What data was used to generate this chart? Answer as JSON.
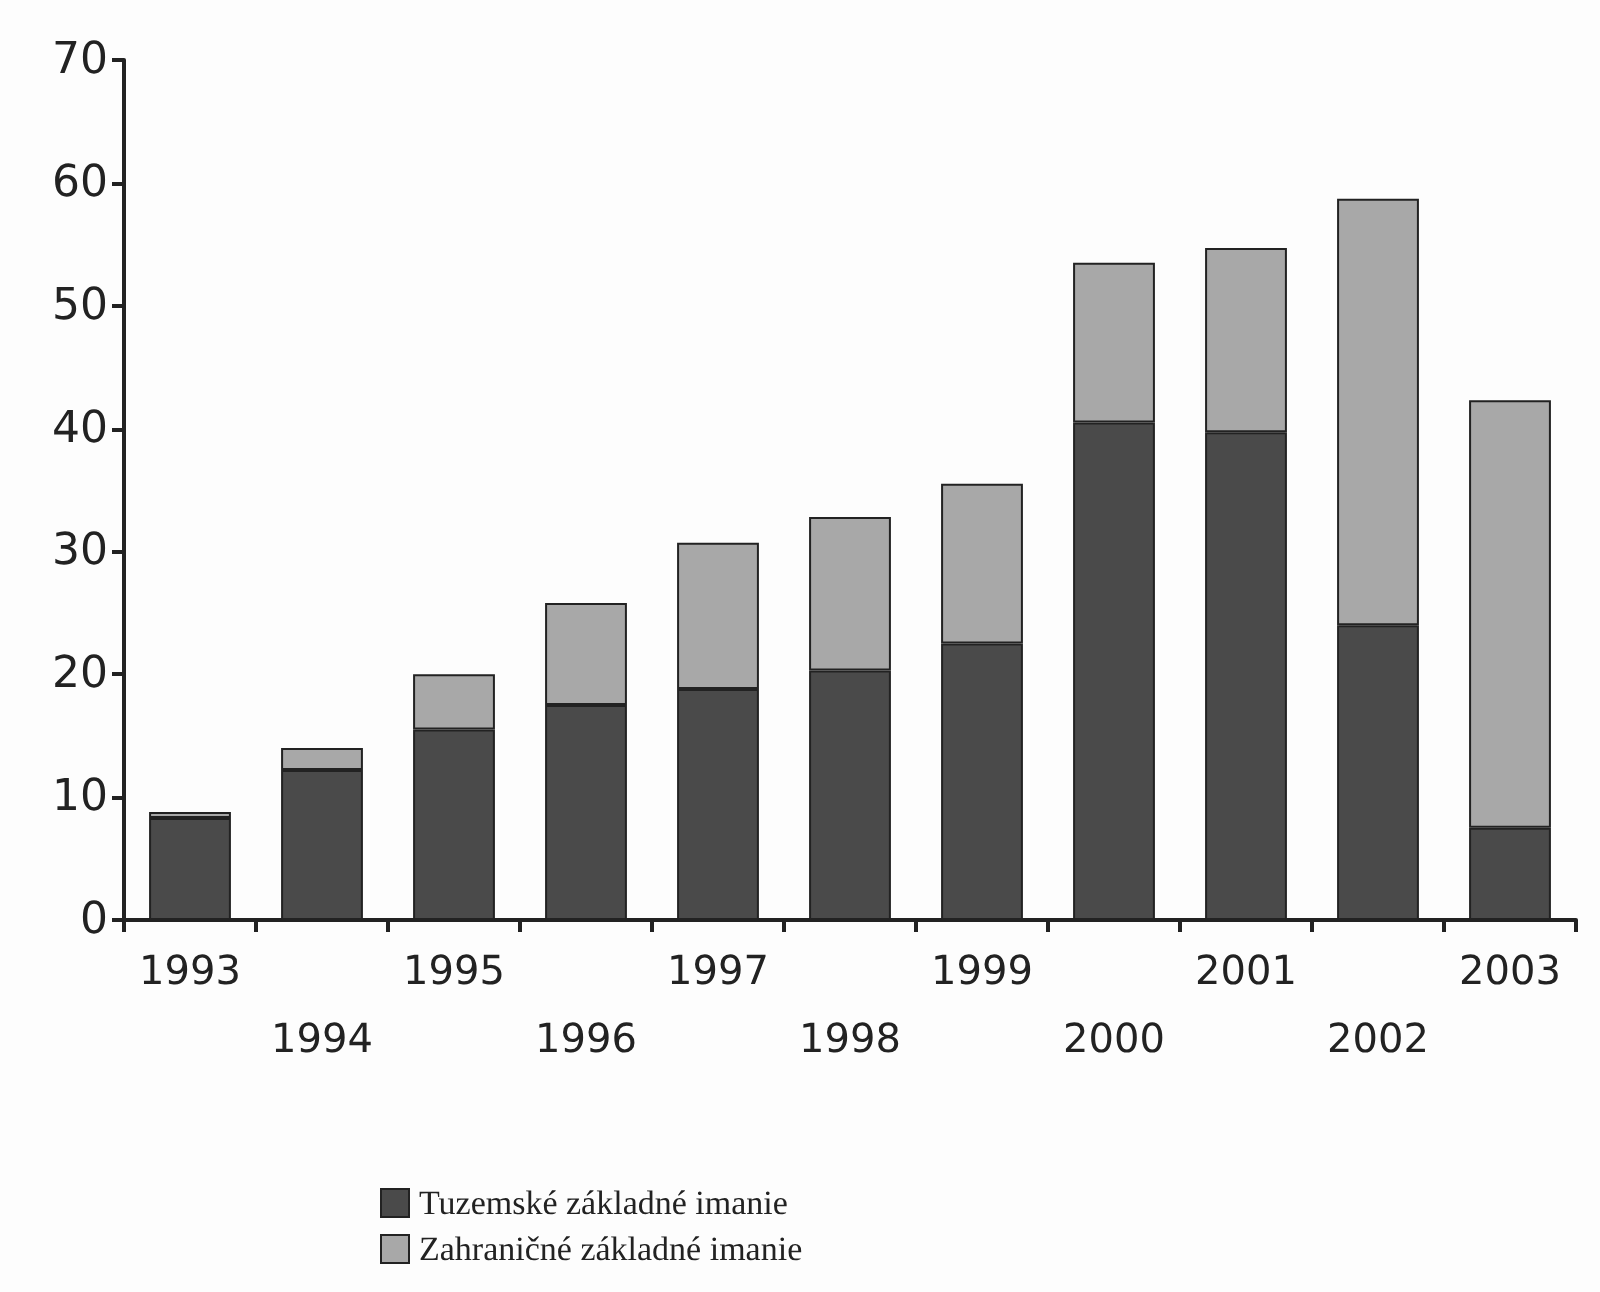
{
  "chart_data": {
    "type": "bar",
    "stacked": true,
    "categories": [
      "1993",
      "1994",
      "1995",
      "1996",
      "1997",
      "1998",
      "1999",
      "2000",
      "2001",
      "2002",
      "2003"
    ],
    "series": [
      {
        "name": "Tuzemské základné imanie",
        "color": "#4a4a4a",
        "values": [
          8.3,
          12.2,
          15.5,
          17.5,
          18.8,
          20.3,
          22.5,
          40.5,
          39.7,
          24,
          7.5
        ]
      },
      {
        "name": "Zahraničné základné imanie",
        "color": "#a8a8a8",
        "values": [
          0.5,
          1.8,
          4.5,
          8.3,
          11.9,
          12.5,
          13,
          13,
          15,
          34.7,
          34.8
        ]
      }
    ],
    "ylim": [
      0,
      70
    ],
    "yticks": [
      0,
      10,
      20,
      30,
      40,
      50,
      60,
      70
    ],
    "grid": false,
    "legend": "bottom"
  }
}
